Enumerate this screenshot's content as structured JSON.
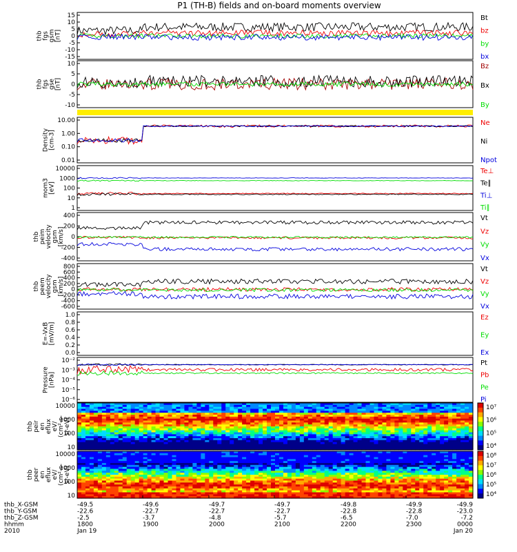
{
  "title": "P1 (TH-B) fields and on-board moments overview",
  "colors": {
    "black": "#000000",
    "red": "#ee0000",
    "green": "#00dd00",
    "blue": "#0000dd",
    "maroon": "#a00000",
    "yellow": "#ffee00"
  },
  "footer": {
    "rows": [
      {
        "label": "thb_X-GSM",
        "values": [
          "-49.5",
          "-49.6",
          "-49.7",
          "-49.7",
          "-49.8",
          "-49.9",
          "-49.9"
        ]
      },
      {
        "label": "thb_Y-GSM",
        "values": [
          "-22.6",
          "-22.7",
          "-22.7",
          "-22.7",
          "-22.8",
          "-22.8",
          "-23.0"
        ]
      },
      {
        "label": "thb_Z-GSM",
        "values": [
          "-2.5",
          "-3.7",
          "-4.8",
          "-5.7",
          "-6.5",
          "-7.0",
          "-7.2"
        ]
      },
      {
        "label": "hhmm",
        "values": [
          "1800",
          "1900",
          "2000",
          "2100",
          "2200",
          "2300",
          "0000"
        ]
      },
      {
        "label": "2010",
        "values": [
          "Jan 19",
          "",
          "",
          "",
          "",
          "",
          "Jan 20"
        ]
      }
    ]
  },
  "chart_data": [
    {
      "type": "line",
      "ylabel": [
        "thb",
        "fgs",
        "gsm",
        "[nT]"
      ],
      "ylim": [
        -15,
        15
      ],
      "yticks": [
        "15",
        "10",
        "5",
        "0",
        "-5",
        "-10",
        "-15"
      ],
      "series": [
        {
          "name": "Bt",
          "color": "black",
          "base": 6,
          "noise": 3
        },
        {
          "name": "bz",
          "color": "red",
          "base": 2,
          "noise": 2
        },
        {
          "name": "by",
          "color": "green",
          "base": 0,
          "noise": 1.5
        },
        {
          "name": "bx",
          "color": "blue",
          "base": -1,
          "noise": 2
        }
      ]
    },
    {
      "type": "line",
      "ylabel": [
        "thb",
        "fgs",
        "gse",
        "[nT]"
      ],
      "ylim": [
        -15,
        15
      ],
      "yticks": [
        "10",
        "5",
        "0",
        "-5",
        "-10"
      ],
      "series": [
        {
          "name": "Bz",
          "color": "maroon",
          "base": 0,
          "noise": 4
        },
        {
          "name": "Bx",
          "color": "black",
          "base": 2,
          "noise": 4
        },
        {
          "name": "By",
          "color": "green",
          "base": 0,
          "noise": 1.5
        }
      ]
    },
    {
      "type": "line",
      "log": true,
      "ylabel": [
        "Density",
        "[cm-3]"
      ],
      "ylim": [
        0.01,
        10
      ],
      "yticks": [
        "10.00",
        "1.00",
        "0.10",
        "0.01"
      ],
      "series": [
        {
          "name": "Ne",
          "color": "red",
          "base": 3,
          "noise": 0.2
        },
        {
          "name": "Ni",
          "color": "black",
          "base": 3,
          "noise": 0.1
        },
        {
          "name": "Npot",
          "color": "blue",
          "base": 3,
          "noise": 0.1
        }
      ]
    },
    {
      "type": "line",
      "log": true,
      "ylabel": [
        "mom3",
        "[eV]"
      ],
      "ylim": [
        1,
        10000
      ],
      "yticks": [
        "10000",
        "1000",
        "100",
        "10",
        "1"
      ],
      "series": [
        {
          "name": "Te⊥",
          "color": "red",
          "base": 30,
          "noise": 0.1
        },
        {
          "name": "Te∥",
          "color": "black",
          "base": 25,
          "noise": 0.1
        },
        {
          "name": "Ti⊥",
          "color": "blue",
          "base": 900,
          "noise": 0.05
        },
        {
          "name": "Ti∥",
          "color": "green",
          "base": 500,
          "noise": 0.05
        }
      ]
    },
    {
      "type": "line",
      "ylabel": [
        "thb",
        "peim",
        "velocity",
        "gsm",
        "[km/s]"
      ],
      "ylim": [
        -400,
        400
      ],
      "yticks": [
        "400",
        "200",
        "0",
        "-200",
        "-400"
      ],
      "series": [
        {
          "name": "Vt",
          "color": "black",
          "base": 250,
          "noise": 30
        },
        {
          "name": "Vz",
          "color": "red",
          "base": -20,
          "noise": 20
        },
        {
          "name": "Vy",
          "color": "green",
          "base": -10,
          "noise": 15
        },
        {
          "name": "Vx",
          "color": "blue",
          "base": -220,
          "noise": 30
        }
      ]
    },
    {
      "type": "line",
      "ylabel": [
        "thb",
        "peem",
        "velocity",
        "gsm",
        "[km/s]"
      ],
      "ylim": [
        -600,
        800
      ],
      "yticks": [
        "800",
        "600",
        "400",
        "200",
        "0",
        "-200",
        "-400",
        "-600"
      ],
      "series": [
        {
          "name": "Vt",
          "color": "black",
          "base": 260,
          "noise": 80
        },
        {
          "name": "Vz",
          "color": "red",
          "base": 0,
          "noise": 60
        },
        {
          "name": "Vy",
          "color": "green",
          "base": -20,
          "noise": 50
        },
        {
          "name": "Vx",
          "color": "blue",
          "base": -230,
          "noise": 80
        }
      ]
    },
    {
      "type": "line",
      "ylabel": [
        "E=-VxB",
        "[mV/m]"
      ],
      "ylim": [
        0,
        1
      ],
      "yticks": [
        "1.0",
        "0.8",
        "0.6",
        "0.4",
        "0.2",
        "0.0"
      ],
      "series": [
        {
          "name": "Ez",
          "color": "red"
        },
        {
          "name": "Ey",
          "color": "green"
        },
        {
          "name": "Ex",
          "color": "blue"
        }
      ]
    },
    {
      "type": "line",
      "log": true,
      "ylabel": [
        "Pressure",
        "[nPa]"
      ],
      "ylim": [
        1e-06,
        0.1
      ],
      "yticks": [
        "10⁻²",
        "10⁻³",
        "10⁻⁴",
        "10⁻⁵",
        "10⁻⁶"
      ],
      "series": [
        {
          "name": "Pt",
          "color": "black",
          "base": 0.02,
          "noise": 0.1
        },
        {
          "name": "Pb",
          "color": "red",
          "base": 0.005,
          "noise": 0.4
        },
        {
          "name": "Pe",
          "color": "green",
          "base": 0.002,
          "noise": 0.2
        },
        {
          "name": "Pi",
          "color": "blue",
          "base": 0.02,
          "noise": 0.08
        }
      ]
    },
    {
      "type": "heatmap",
      "ylabel": [
        "thb",
        "peir",
        "en",
        "eflux",
        "eV/",
        "(cm²-s-",
        "sr-eV)"
      ],
      "ylim": [
        10,
        20000
      ],
      "yticks": [
        "10000",
        "1000",
        "100",
        "10"
      ],
      "colorbar": [
        "10⁷",
        "10⁶",
        "10⁵",
        "10⁴"
      ]
    },
    {
      "type": "heatmap",
      "ylabel": [
        "thb",
        "peer",
        "en",
        "eflux",
        "eV/",
        "(cm²-s-",
        "sr-eV)"
      ],
      "ylim": [
        10,
        20000
      ],
      "yticks": [
        "10000",
        "1000",
        "100",
        "10"
      ],
      "colorbar": [
        "10⁸",
        "10⁷",
        "10⁶",
        "10⁵",
        "10⁴"
      ]
    }
  ]
}
